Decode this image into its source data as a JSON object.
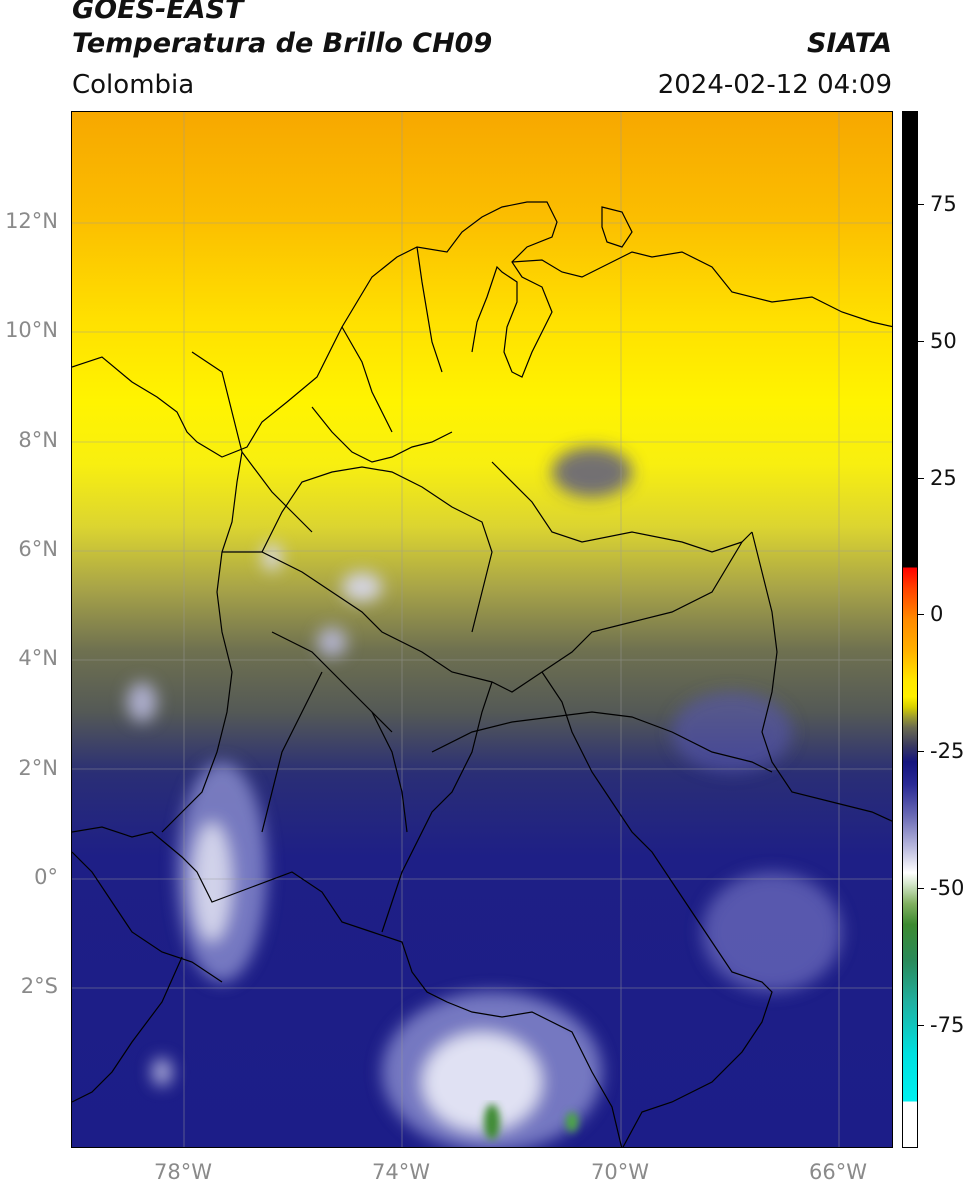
{
  "header": {
    "satellite": "GOES-EAST",
    "product": "Temperatura de Brillo CH09",
    "region": "Colombia",
    "source": "SIATA",
    "datetime": "2024-02-12 04:09"
  },
  "map": {
    "lat_labels": [
      "12°N",
      "10°N",
      "8°N",
      "6°N",
      "4°N",
      "2°N",
      "0°",
      "2°S"
    ],
    "lon_labels": [
      "78°W",
      "74°W",
      "70°W",
      "66°W"
    ]
  },
  "colorbar": {
    "ticks": [
      "75",
      "50",
      "25",
      "0",
      "-25",
      "-50",
      "-75"
    ]
  }
}
